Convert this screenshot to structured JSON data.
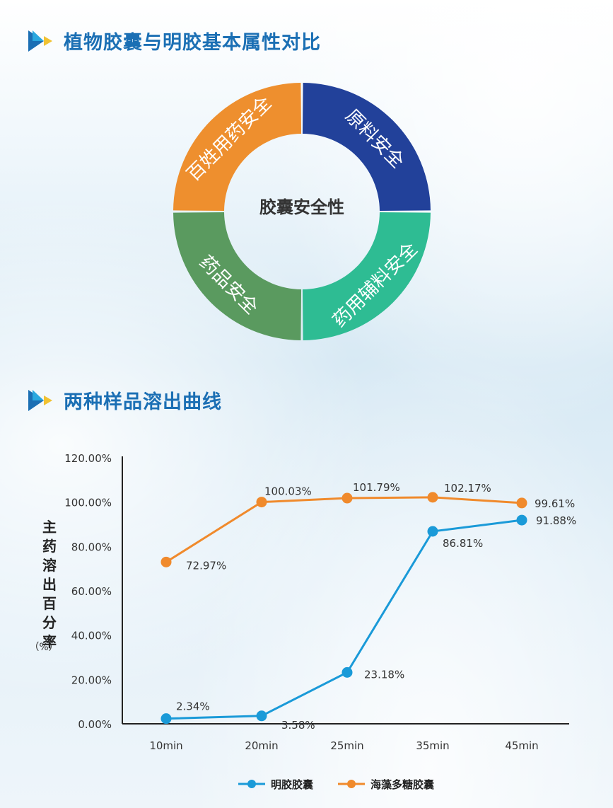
{
  "section1": {
    "title": "植物胶囊与明胶基本属性对比"
  },
  "section2": {
    "title": "两种样品溶出曲线"
  },
  "donut": {
    "center": "胶囊安全性",
    "segments": [
      {
        "label": "原料安全",
        "color": "#22419a"
      },
      {
        "label": "药用辅料安全",
        "color": "#2ebc93"
      },
      {
        "label": "药品安全",
        "color": "#5a9a5f"
      },
      {
        "label": "百姓用药安全",
        "color": "#ee8f2e"
      }
    ]
  },
  "chart_data": {
    "type": "line",
    "categories": [
      "10min",
      "20min",
      "25min",
      "35min",
      "45min"
    ],
    "ylabel": "主药溶出百分率",
    "ylabel_unit": "（%）",
    "ylim": [
      0,
      120
    ],
    "yticks": [
      "0.00%",
      "20.00%",
      "40.00%",
      "60.00%",
      "80.00%",
      "100.00%",
      "120.00%"
    ],
    "legend_position": "bottom",
    "series": [
      {
        "name": "明胶胶囊",
        "color": "#1a9ad8",
        "values": [
          2.34,
          3.58,
          23.18,
          86.81,
          91.88
        ],
        "labels": [
          "2.34%",
          "3.58%",
          "23.18%",
          "86.81%",
          "91.88%"
        ]
      },
      {
        "name": "海藻多糖胶囊",
        "color": "#f08a2c",
        "values": [
          72.97,
          100.03,
          101.79,
          102.17,
          99.61
        ],
        "labels": [
          "72.97%",
          "100.03%",
          "101.79%",
          "102.17%",
          "99.61%"
        ]
      }
    ]
  }
}
